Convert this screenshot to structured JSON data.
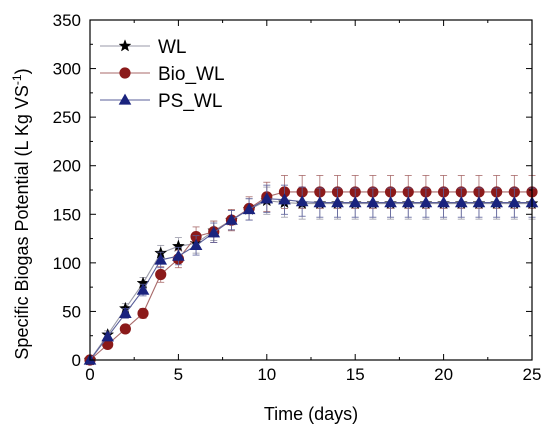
{
  "chart_data": {
    "type": "line",
    "xlabel": "Time (days)",
    "ylabel_main": "Specific Biogas Potential (L Kg VS",
    "ylabel_sup": "-1",
    "ylabel_close": ")",
    "xlim": [
      0,
      25
    ],
    "ylim": [
      0,
      350
    ],
    "xticks": [
      0,
      5,
      10,
      15,
      20,
      25
    ],
    "yticks": [
      0,
      50,
      100,
      150,
      200,
      250,
      300,
      350
    ],
    "legend_position": "top-left",
    "series": [
      {
        "name": "WL",
        "marker": "star",
        "color": "#000000",
        "line_color": "#9a9aa8",
        "x": [
          0,
          1,
          2,
          3,
          4,
          5,
          6,
          7,
          8,
          9,
          10,
          11,
          12,
          13,
          14,
          15,
          16,
          17,
          18,
          19,
          20,
          21,
          22,
          23,
          24,
          25
        ],
        "y": [
          0,
          26,
          53,
          79,
          110,
          117,
          120,
          133,
          144,
          155,
          164,
          162,
          161,
          161,
          161,
          161,
          161,
          161,
          161,
          161,
          161,
          161,
          161,
          161,
          161,
          161
        ],
        "err": [
          0,
          4,
          5,
          6,
          8,
          9,
          10,
          10,
          10,
          11,
          14,
          15,
          16,
          16,
          16,
          16,
          16,
          16,
          16,
          16,
          16,
          16,
          16,
          16,
          16,
          16
        ]
      },
      {
        "name": "Bio_WL",
        "marker": "circle",
        "color": "#8b1a1a",
        "line_color": "#a86a6a",
        "x": [
          0,
          1,
          2,
          3,
          4,
          5,
          6,
          7,
          8,
          9,
          10,
          11,
          12,
          13,
          14,
          15,
          16,
          17,
          18,
          19,
          20,
          21,
          22,
          23,
          24,
          25
        ],
        "y": [
          0,
          16,
          32,
          48,
          88,
          104,
          127,
          132,
          144,
          156,
          168,
          173,
          173,
          173,
          173,
          173,
          173,
          173,
          173,
          173,
          173,
          173,
          173,
          173,
          173,
          173
        ],
        "err": [
          0,
          3,
          4,
          5,
          8,
          9,
          10,
          11,
          11,
          12,
          15,
          17,
          17,
          17,
          17,
          17,
          17,
          17,
          17,
          17,
          17,
          17,
          17,
          17,
          17,
          17
        ]
      },
      {
        "name": "PS_WL",
        "marker": "triangle",
        "color": "#1a237e",
        "line_color": "#5a5f9a",
        "x": [
          0,
          1,
          2,
          3,
          4,
          5,
          6,
          7,
          8,
          9,
          10,
          11,
          12,
          13,
          14,
          15,
          16,
          17,
          18,
          19,
          20,
          21,
          22,
          23,
          24,
          25
        ],
        "y": [
          0,
          24,
          48,
          72,
          103,
          107,
          118,
          131,
          144,
          155,
          166,
          165,
          163,
          162,
          162,
          162,
          162,
          162,
          162,
          162,
          162,
          162,
          162,
          162,
          162,
          162
        ],
        "err": [
          0,
          4,
          5,
          6,
          8,
          9,
          10,
          10,
          10,
          11,
          14,
          15,
          15,
          15,
          15,
          15,
          15,
          15,
          15,
          15,
          15,
          15,
          15,
          15,
          15,
          15
        ]
      }
    ]
  }
}
